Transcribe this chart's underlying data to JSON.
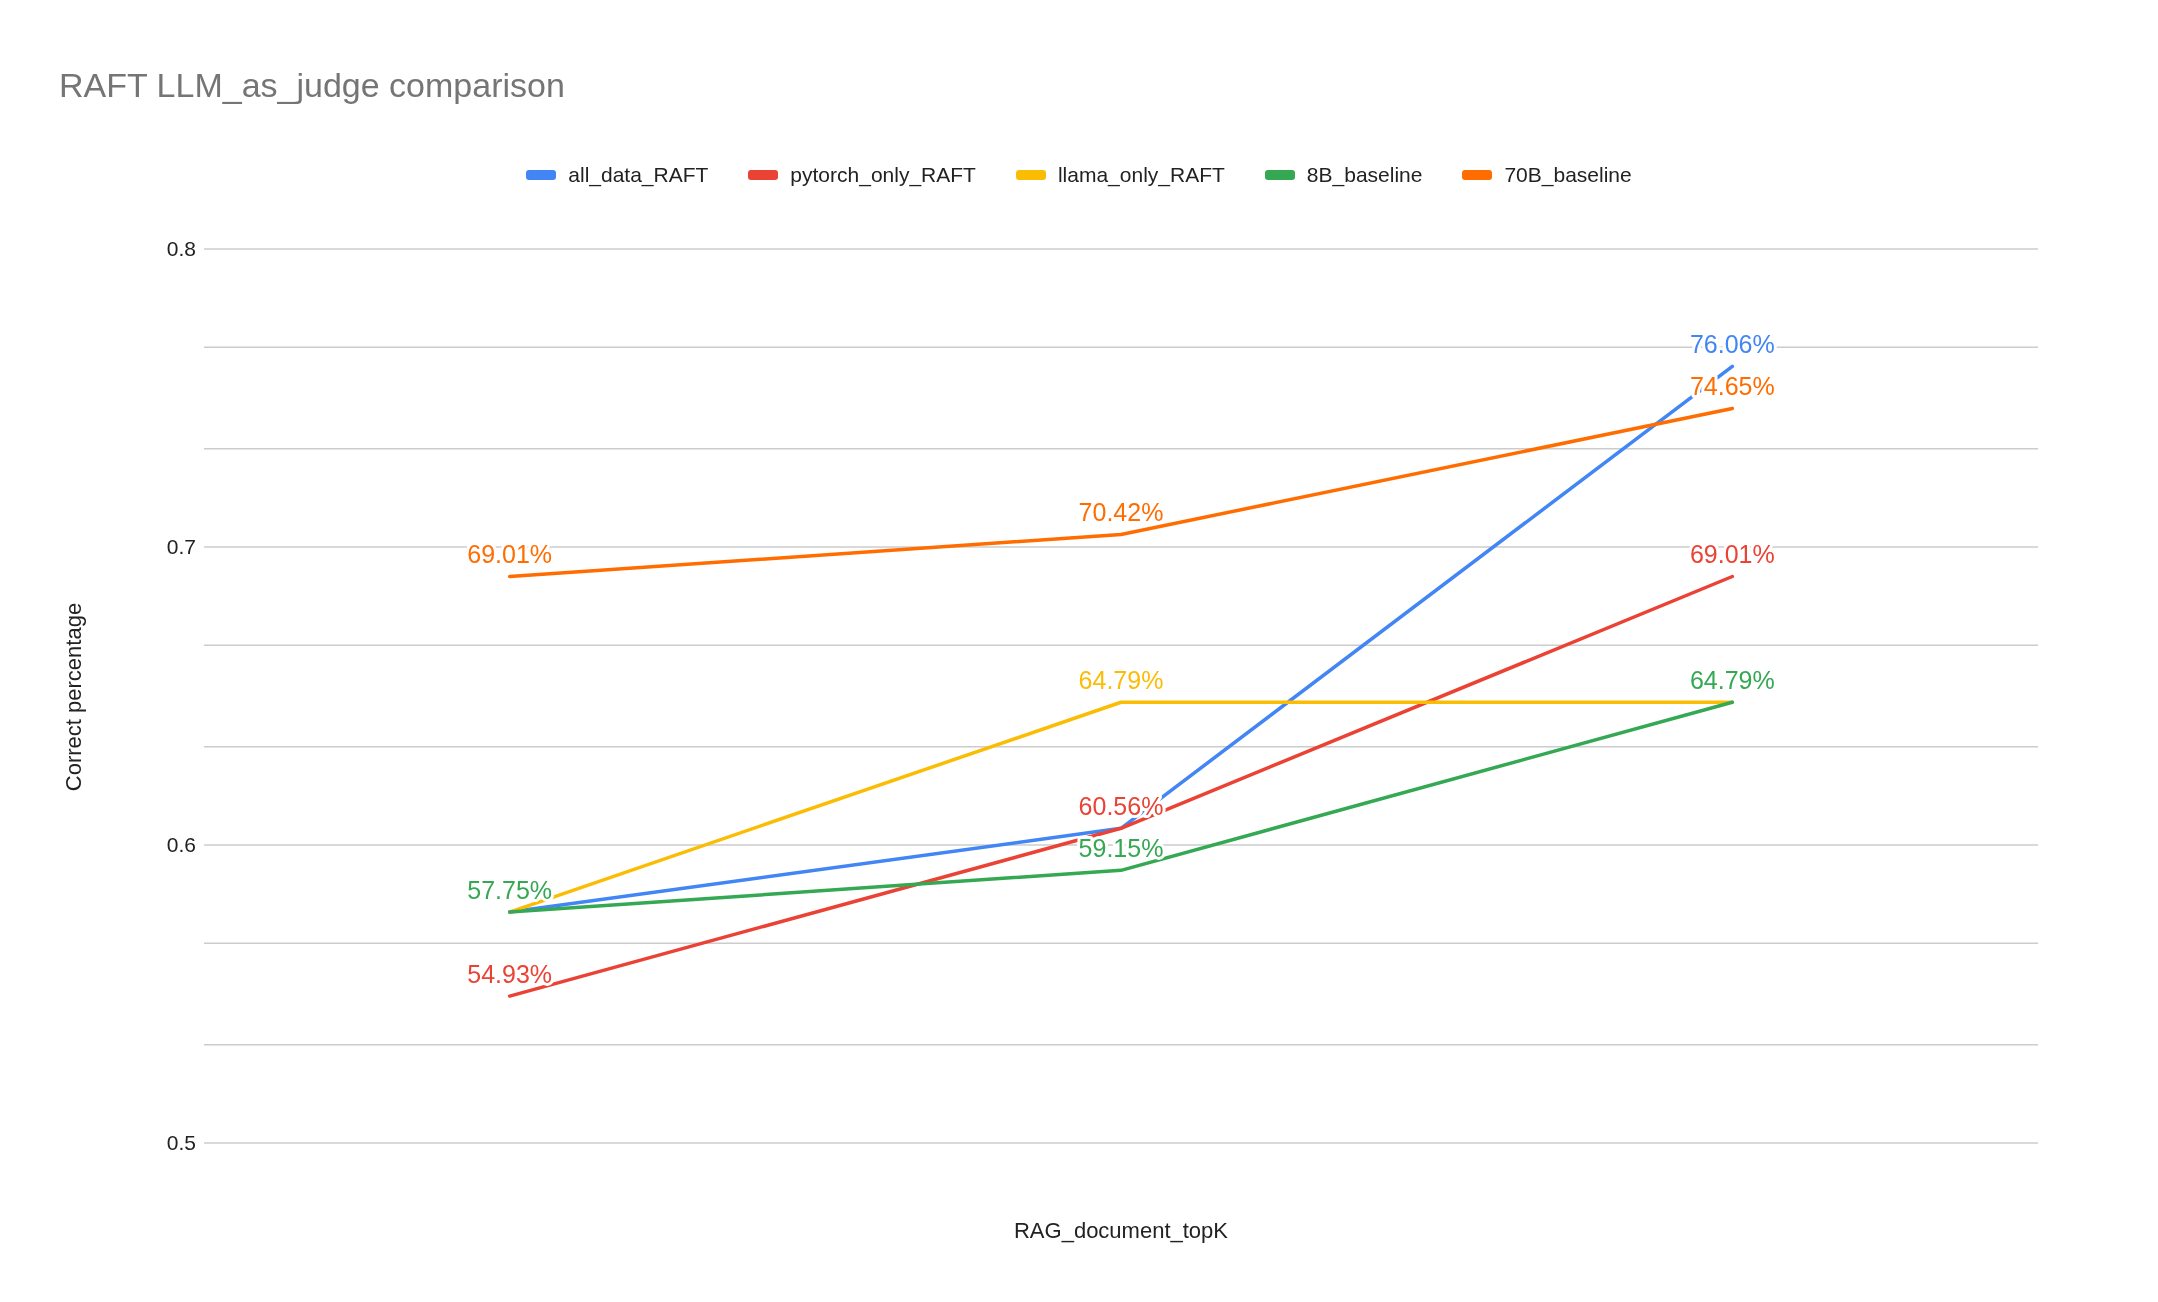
{
  "chart_data": {
    "type": "line",
    "title": "RAFT LLM_as_judge comparison",
    "xlabel": "RAG_document_topK",
    "ylabel": "Correct percentage",
    "categories": [
      null,
      null,
      null
    ],
    "series": [
      {
        "name": "all_data_RAFT",
        "color": "#4285f4",
        "values": [
          0.5775,
          0.6056,
          0.7606
        ],
        "value_labels": [
          null,
          null,
          "76.06%"
        ]
      },
      {
        "name": "pytorch_only_RAFT",
        "color": "#ea4335",
        "values": [
          0.5493,
          0.6056,
          0.6901
        ],
        "value_labels": [
          "54.93%",
          "60.56%",
          "69.01%"
        ]
      },
      {
        "name": "llama_only_RAFT",
        "color": "#fbbc04",
        "values": [
          0.5775,
          0.6479,
          0.6479
        ],
        "value_labels": [
          null,
          "64.79%",
          null
        ]
      },
      {
        "name": "8B_baseline",
        "color": "#34a853",
        "values": [
          0.5775,
          0.5915,
          0.6479
        ],
        "value_labels": [
          "57.75%",
          "59.15%",
          "64.79%"
        ]
      },
      {
        "name": "70B_baseline",
        "color": "#ff6d01",
        "values": [
          0.6901,
          0.7042,
          0.7465
        ],
        "value_labels": [
          "69.01%",
          "70.42%",
          "74.65%"
        ]
      }
    ],
    "ylim": [
      0.5,
      0.8
    ],
    "yticks": [
      0.5,
      {
        "value": 0.533,
        "label": null
      },
      {
        "value": 0.567,
        "label": null
      },
      0.6,
      {
        "value": 0.633,
        "label": null
      },
      {
        "value": 0.667,
        "label": null
      },
      0.7,
      {
        "value": 0.733,
        "label": null
      },
      {
        "value": 0.767,
        "label": null
      },
      0.8
    ],
    "grid": "y",
    "legend": "top",
    "marker": "none",
    "line_style": "solid"
  }
}
